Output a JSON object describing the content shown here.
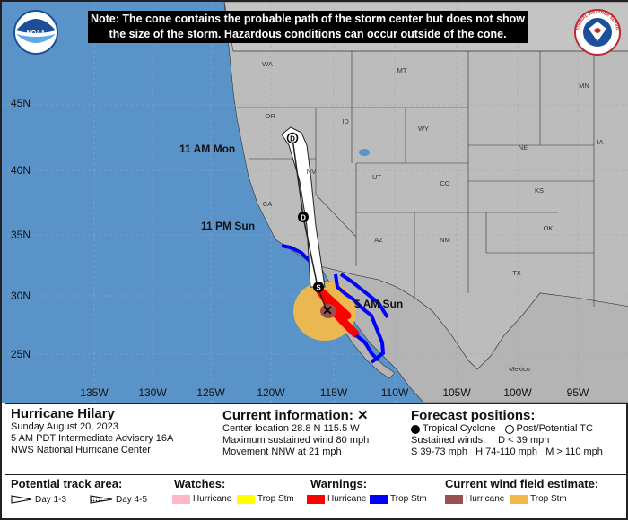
{
  "note": {
    "line1": "Note: The cone contains the probable path of the storm center but does not show",
    "line2": "the size of the storm. Hazardous conditions can occur outside of the cone."
  },
  "logos": {
    "noaa": "NOAA",
    "nws_text": "NATIONAL WEATHER SERVICE"
  },
  "lat_labels": [
    "45N",
    "40N",
    "35N",
    "30N",
    "25N"
  ],
  "lon_labels": [
    "135W",
    "130W",
    "125W",
    "120W",
    "115W",
    "110W",
    "105W",
    "100W",
    "95W"
  ],
  "states": [
    "WA",
    "MT",
    "OR",
    "ID",
    "WY",
    "NV",
    "UT",
    "CO",
    "CA",
    "AZ",
    "NM",
    "NE",
    "KS",
    "OK",
    "TX",
    "MN",
    "IA"
  ],
  "country_labels": [
    "Mexico"
  ],
  "forecast_labels": {
    "mon": "11 AM Mon",
    "sun_pm": "11 PM Sun",
    "sun_am": "5 AM Sun"
  },
  "markers": {
    "d": "D",
    "s": "S"
  },
  "storm": {
    "name": "Hurricane Hilary",
    "date": "Sunday August 20, 2023",
    "advisory": "5 AM PDT Intermediate Advisory 16A",
    "center": "NWS National Hurricane Center"
  },
  "current": {
    "title": "Current information: ✕",
    "location": "Center location 28.8 N 115.5 W",
    "wind": "Maximum sustained wind 80 mph",
    "movement": "Movement NNW at 21 mph"
  },
  "forecast": {
    "title": "Forecast positions:",
    "tropical": "Tropical Cyclone",
    "post": "Post/Potential TC",
    "winds_label": "Sustained winds:",
    "d_label": "D < 39 mph",
    "scale": "S 39-73 mph   H 74-110 mph   M > 110 mph"
  },
  "legend": {
    "track_title": "Potential track area:",
    "day13": "Day 1-3",
    "day45": "Day 4-5",
    "watches_title": "Watches:",
    "watch_hurricane": "Hurricane",
    "watch_trop": "Trop Stm",
    "warnings_title": "Warnings:",
    "warn_hurricane": "Hurricane",
    "warn_trop": "Trop Stm",
    "wind_title": "Current wind field estimate:",
    "wind_hurricane": "Hurricane",
    "wind_trop": "Trop Stm"
  },
  "colors": {
    "ocean": "#5a93c8",
    "land": "#bcbcbc",
    "mexico": "#b4b4b4",
    "grid": "#8fa8c8",
    "cone": "#ffffff",
    "hurricane_warning": "#ff0000",
    "trop_warning": "#0000ff",
    "hurricane_watch": "#ffb6c8",
    "trop_watch": "#ffff00",
    "wind_hurricane": "#9a5050",
    "wind_trop": "#f2b84a"
  }
}
